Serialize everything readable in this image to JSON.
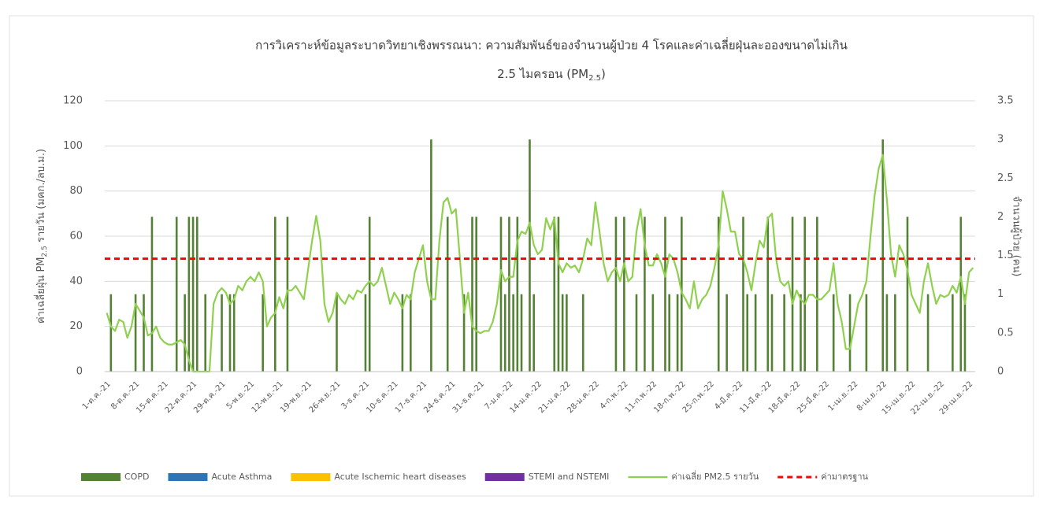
{
  "chart_data": {
    "type": "combo",
    "title": "การวิเคราะห์ข้อมูลระบาดวิทยาเชิงพรรณนา: ความสัมพันธ์ของจำนวนผู้ป่วย 4 โรคและค่าเฉลี่ยฝุ่นละอองขนาดไม่เกิน",
    "title_line2": [
      "2.5 ไมครอน (PM",
      "2.5",
      ")"
    ],
    "y_label": [
      "ค่าเฉลี่ยฝุ่น PM",
      "2.5",
      " รายวัน (มคก./ลบ.ม.)"
    ],
    "y2_label": "จำนวนผู้ป่วย (คน)",
    "ylim": [
      0,
      120
    ],
    "yticks": [
      0,
      20,
      40,
      60,
      80,
      100,
      120
    ],
    "y2lim": [
      0,
      3.5
    ],
    "y2ticks": [
      0,
      0.5,
      1,
      1.5,
      2,
      2.5,
      3,
      3.5
    ],
    "grid": true,
    "legend": "bottom",
    "categories": [
      "1-ต.ค.-21",
      null,
      null,
      null,
      null,
      null,
      null,
      "8-ต.ค.-21",
      null,
      null,
      null,
      null,
      null,
      null,
      "15-ต.ค.-21",
      null,
      null,
      null,
      null,
      null,
      null,
      "22-ต.ค.-21",
      null,
      null,
      null,
      null,
      null,
      null,
      "29-ต.ค.-21",
      null,
      null,
      null,
      null,
      null,
      null,
      "5-พ.ย.-21",
      null,
      null,
      null,
      null,
      null,
      null,
      "12-พ.ย.-21",
      null,
      null,
      null,
      null,
      null,
      null,
      "19-พ.ย.-21",
      null,
      null,
      null,
      null,
      null,
      null,
      "26-พ.ย.-21",
      null,
      null,
      null,
      null,
      null,
      null,
      "3-ธ.ค.-21",
      null,
      null,
      null,
      null,
      null,
      null,
      "10-ธ.ค.-21",
      null,
      null,
      null,
      null,
      null,
      null,
      "17-ธ.ค.-21",
      null,
      null,
      null,
      null,
      null,
      null,
      "24-ธ.ค.-21",
      null,
      null,
      null,
      null,
      null,
      null,
      "31-ธ.ค.-21",
      null,
      null,
      null,
      null,
      null,
      null,
      "7-ม.ค.-22",
      null,
      null,
      null,
      null,
      null,
      null,
      "14-ม.ค.-22",
      null,
      null,
      null,
      null,
      null,
      null,
      "21-ม.ค.-22",
      null,
      null,
      null,
      null,
      null,
      null,
      "28-ม.ค.-22",
      null,
      null,
      null,
      null,
      null,
      null,
      "4-ก.พ.-22",
      null,
      null,
      null,
      null,
      null,
      null,
      "11-ก.พ.-22",
      null,
      null,
      null,
      null,
      null,
      null,
      "18-ก.พ.-22",
      null,
      null,
      null,
      null,
      null,
      null,
      "25-ก.พ.-22",
      null,
      null,
      null,
      null,
      null,
      null,
      "4-มี.ค.-22",
      null,
      null,
      null,
      null,
      null,
      null,
      "11-มี.ค.-22",
      null,
      null,
      null,
      null,
      null,
      null,
      "18-มี.ค.-22",
      null,
      null,
      null,
      null,
      null,
      null,
      "25-มี.ค.-22",
      null,
      null,
      null,
      null,
      null,
      null,
      "1-เม.ย.-22",
      null,
      null,
      null,
      null,
      null,
      null,
      "8-เม.ย.-22",
      null,
      null,
      null,
      null,
      null,
      null,
      "15-เม.ย.-22",
      null,
      null,
      null,
      null,
      null,
      null,
      "22-เม.ย.-22",
      null,
      null,
      null,
      null,
      null,
      null,
      "29-เม.ย.-22",
      null
    ],
    "series": [
      {
        "name": "COPD",
        "type": "bar",
        "axis": "y2",
        "color": "#548235",
        "values": [
          0,
          1,
          0,
          0,
          0,
          0,
          0,
          1,
          0,
          1,
          0,
          2,
          0,
          0,
          0,
          0,
          0,
          2,
          0,
          1,
          2,
          2,
          2,
          0,
          1,
          0,
          0,
          0,
          1,
          0,
          1,
          1,
          0,
          0,
          0,
          0,
          0,
          0,
          1,
          0,
          0,
          2,
          0,
          0,
          2,
          0,
          0,
          0,
          0,
          0,
          0,
          0,
          0,
          0,
          0,
          0,
          1,
          0,
          0,
          0,
          0,
          0,
          0,
          1,
          2,
          0,
          0,
          0,
          0,
          0,
          0,
          0,
          1,
          0,
          1,
          0,
          0,
          0,
          0,
          3,
          0,
          0,
          0,
          2,
          0,
          0,
          0,
          1,
          0,
          2,
          2,
          0,
          0,
          0,
          0,
          0,
          2,
          1,
          2,
          1,
          2,
          1,
          0,
          3,
          1,
          0,
          0,
          0,
          0,
          2,
          2,
          1,
          1,
          0,
          0,
          0,
          1,
          0,
          0,
          0,
          0,
          0,
          0,
          0,
          2,
          0,
          2,
          0,
          0,
          1,
          0,
          2,
          0,
          1,
          0,
          0,
          2,
          1,
          0,
          1,
          2,
          0,
          0,
          0,
          0,
          0,
          0,
          0,
          0,
          2,
          0,
          1,
          0,
          0,
          0,
          2,
          1,
          0,
          1,
          0,
          0,
          2,
          1,
          0,
          0,
          1,
          0,
          2,
          0,
          1,
          2,
          0,
          0,
          2,
          0,
          0,
          0,
          1,
          0,
          0,
          0,
          1,
          0,
          0,
          0,
          1,
          0,
          0,
          0,
          3,
          1,
          0,
          1,
          0,
          0,
          2,
          0,
          0,
          0,
          0,
          1,
          0,
          0,
          0,
          0,
          0,
          1,
          0,
          2,
          1,
          0,
          0
        ]
      },
      {
        "name": "Acute Asthma",
        "type": "bar",
        "axis": "y2",
        "color": "#2e75b6",
        "values": [
          0,
          0,
          0,
          0,
          0,
          0,
          0,
          0,
          0,
          0,
          0,
          0,
          0,
          0,
          0,
          0,
          0,
          0,
          0,
          0,
          0,
          0,
          0,
          0,
          0,
          0,
          0,
          0,
          0,
          0,
          0,
          0,
          0,
          0,
          0,
          0,
          0,
          0,
          0,
          0,
          0,
          0,
          0,
          0,
          0,
          0,
          0,
          0,
          0,
          0,
          0,
          0,
          0,
          0,
          0,
          0,
          0,
          0,
          0,
          0,
          0,
          0,
          0,
          0,
          0,
          0,
          0,
          0,
          0,
          0,
          0,
          0,
          0,
          0,
          0,
          0,
          0,
          0,
          0,
          0,
          0,
          0,
          0,
          0,
          0,
          0,
          0,
          0,
          0,
          0,
          0,
          0,
          0,
          0,
          0,
          0,
          0,
          0,
          0,
          0,
          0,
          0,
          0,
          0,
          0,
          0,
          0,
          0,
          0,
          0,
          0,
          0,
          0,
          0,
          0,
          0,
          0,
          0,
          0,
          0,
          0,
          0,
          0,
          0,
          0,
          0,
          0,
          0,
          0,
          0,
          0,
          0,
          0,
          0,
          0,
          0,
          0,
          0,
          0,
          0,
          0,
          0,
          0,
          0,
          0,
          0,
          0,
          0,
          0,
          0,
          0,
          0,
          0,
          0,
          0,
          0,
          0,
          0,
          0,
          0,
          0,
          0,
          0,
          0,
          0,
          0,
          0,
          0,
          0,
          0,
          0,
          0,
          0,
          0,
          0,
          0,
          0,
          0,
          0,
          0,
          0,
          0,
          0,
          0,
          0,
          0,
          0,
          0,
          0,
          0,
          0,
          0,
          0,
          0,
          0,
          0,
          0,
          0,
          0,
          0,
          0,
          0,
          0,
          0,
          0,
          0,
          0,
          0,
          0,
          0,
          0,
          0
        ]
      },
      {
        "name": "Acute Ischemic heart diseases",
        "type": "bar",
        "axis": "y2",
        "color": "#ffc000",
        "values": [
          0,
          0,
          0,
          0,
          0,
          0,
          0,
          0,
          0,
          0,
          0,
          0,
          0,
          0,
          0,
          0,
          0,
          0,
          0,
          0,
          0,
          0,
          0,
          0,
          0,
          0,
          0,
          0,
          0,
          0,
          0,
          0,
          0,
          0,
          0,
          0,
          0,
          0,
          0,
          0,
          0,
          0,
          0,
          0,
          0,
          0,
          0,
          0,
          0,
          0,
          0,
          0,
          0,
          0,
          0,
          0,
          0,
          0,
          0,
          0,
          0,
          0,
          0,
          0,
          0,
          0,
          0,
          0,
          0,
          0,
          0,
          0,
          0,
          0,
          0,
          0,
          0,
          0,
          0,
          0,
          0,
          0,
          0,
          0,
          0,
          0,
          0,
          0,
          0,
          0,
          0,
          0,
          0,
          0,
          0,
          0,
          0,
          0,
          0,
          0,
          0,
          0,
          0,
          0,
          0,
          0,
          0,
          0,
          0,
          0,
          0,
          0,
          0,
          0,
          0,
          0,
          0,
          0,
          0,
          0,
          0,
          0,
          0,
          0,
          0,
          0,
          0,
          0,
          0,
          0,
          0,
          0,
          0,
          0,
          0,
          0,
          0,
          0,
          0,
          0,
          0,
          0,
          0,
          0,
          0,
          0,
          0,
          0,
          0,
          0,
          0,
          0,
          0,
          0,
          0,
          0,
          0,
          0,
          0,
          0,
          0,
          0,
          0,
          0,
          0,
          0,
          0,
          0,
          0,
          0,
          0,
          0,
          0,
          0,
          0,
          0,
          0,
          0,
          0,
          0,
          0,
          0,
          0,
          0,
          0,
          0,
          0,
          0,
          0,
          0,
          0,
          0,
          0,
          0,
          0,
          0,
          0,
          0,
          0,
          0,
          0,
          0,
          0,
          0,
          0,
          0,
          0,
          0,
          0,
          0,
          0,
          0
        ]
      },
      {
        "name": "STEMI and NSTEMI",
        "type": "bar",
        "axis": "y2",
        "color": "#7030a0",
        "values": [
          0,
          0,
          0,
          0,
          0,
          0,
          0,
          0,
          0,
          0,
          0,
          0,
          0,
          0,
          0,
          0,
          0,
          0,
          0,
          0,
          0,
          0,
          0,
          0,
          0,
          0,
          0,
          0,
          0,
          0,
          0,
          0,
          0,
          0,
          0,
          0,
          0,
          0,
          0,
          0,
          0,
          0,
          0,
          0,
          0,
          0,
          0,
          0,
          0,
          0,
          0,
          0,
          0,
          0,
          0,
          0,
          0,
          0,
          0,
          0,
          0,
          0,
          0,
          0,
          0,
          0,
          0,
          0,
          0,
          0,
          0,
          0,
          0,
          0,
          0,
          0,
          0,
          0,
          0,
          0,
          0,
          0,
          0,
          0,
          0,
          0,
          0,
          0,
          0,
          0,
          0,
          0,
          0,
          0,
          0,
          0,
          0,
          0,
          0,
          0,
          0,
          0,
          0,
          0,
          0,
          0,
          0,
          0,
          0,
          0,
          0,
          0,
          0,
          0,
          0,
          0,
          0,
          0,
          0,
          0,
          0,
          0,
          0,
          0,
          0,
          0,
          0,
          0,
          0,
          0,
          0,
          0,
          0,
          0,
          0,
          0,
          0,
          0,
          0,
          0,
          0,
          0,
          0,
          0,
          0,
          0,
          0,
          0,
          0,
          0,
          0,
          0,
          0,
          0,
          0,
          0,
          0,
          0,
          0,
          0,
          0,
          0,
          0,
          0,
          0,
          0,
          0,
          0,
          0,
          0,
          0,
          0,
          0,
          0,
          0,
          0,
          0,
          0,
          0,
          0,
          0,
          0,
          0,
          0,
          0,
          0,
          0,
          0,
          0,
          0,
          0,
          0,
          0,
          0,
          0,
          0,
          0,
          0,
          0,
          0,
          0,
          0,
          0,
          0,
          0,
          0,
          0,
          0,
          0,
          0,
          0,
          0
        ]
      },
      {
        "name": "ค่าเฉลี่ย PM2.5 รายวัน",
        "type": "line",
        "axis": "y",
        "color": "#8fd14f",
        "values": [
          26,
          20,
          18,
          23,
          22,
          15,
          20,
          30,
          27,
          24,
          16,
          17,
          20,
          15,
          13,
          12,
          12,
          13,
          14,
          12,
          5,
          0,
          0,
          0,
          0,
          0,
          30,
          35,
          37,
          35,
          30,
          32,
          38,
          36,
          40,
          42,
          40,
          44,
          40,
          20,
          24,
          26,
          33,
          28,
          36,
          36,
          38,
          35,
          32,
          45,
          58,
          69,
          58,
          30,
          22,
          26,
          35,
          32,
          30,
          34,
          32,
          36,
          35,
          38,
          40,
          38,
          40,
          46,
          38,
          30,
          35,
          32,
          28,
          34,
          32,
          44,
          50,
          56,
          40,
          32,
          32,
          58,
          75,
          77,
          70,
          72,
          50,
          26,
          35,
          20,
          18,
          17,
          18,
          18,
          22,
          30,
          45,
          40,
          42,
          42,
          58,
          62,
          61,
          66,
          56,
          52,
          54,
          68,
          63,
          68,
          48,
          44,
          48,
          46,
          47,
          44,
          50,
          59,
          56,
          75,
          62,
          48,
          40,
          44,
          46,
          40,
          48,
          40,
          42,
          62,
          72,
          56,
          47,
          47,
          52,
          48,
          42,
          52,
          50,
          44,
          35,
          32,
          28,
          40,
          28,
          32,
          34,
          38,
          46,
          56,
          80,
          72,
          62,
          62,
          52,
          50,
          44,
          36,
          48,
          58,
          55,
          68,
          70,
          50,
          40,
          38,
          40,
          30,
          36,
          32,
          30,
          34,
          34,
          32,
          32,
          34,
          36,
          48,
          30,
          22,
          10,
          10,
          20,
          30,
          34,
          40,
          60,
          78,
          90,
          96,
          76,
          52,
          42,
          56,
          52,
          45,
          34,
          30,
          26,
          40,
          48,
          38,
          30,
          34,
          33,
          34,
          38,
          35,
          42,
          30,
          44,
          46
        ]
      }
    ],
    "reference_line": {
      "name": "ค่ามาตรฐาน",
      "value": 50,
      "color": "#ff0000",
      "axis": "y"
    }
  }
}
